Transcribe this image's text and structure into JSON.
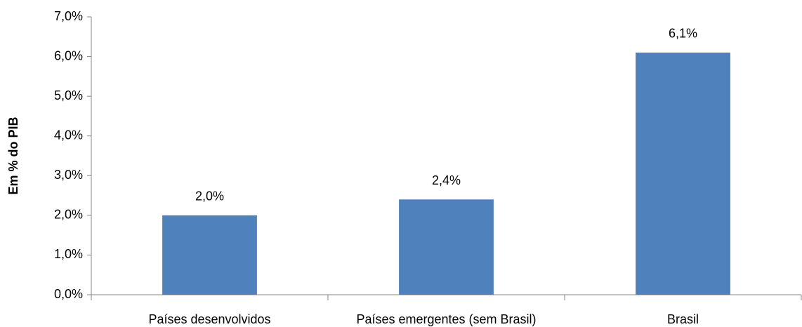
{
  "chart_data": {
    "type": "bar",
    "y_label": "Em % do PIB",
    "categories": [
      "Países desenvolvidos",
      "Países emergentes (sem Brasil)",
      "Brasil"
    ],
    "values": [
      2.0,
      2.4,
      6.1
    ],
    "value_labels": [
      "2,0%",
      "2,4%",
      "6,1%"
    ],
    "color": "#4f81bd",
    "ylim": [
      0,
      7
    ],
    "yticks": [
      {
        "value": 0,
        "label": "0,0%"
      },
      {
        "value": 1,
        "label": "1,0%"
      },
      {
        "value": 2,
        "label": "2,0%"
      },
      {
        "value": 3,
        "label": "3,0%"
      },
      {
        "value": 4,
        "label": "4,0%"
      },
      {
        "value": 5,
        "label": "5,0%"
      },
      {
        "value": 6,
        "label": "6,0%"
      },
      {
        "value": 7,
        "label": "7,0%"
      }
    ],
    "grid": false
  }
}
